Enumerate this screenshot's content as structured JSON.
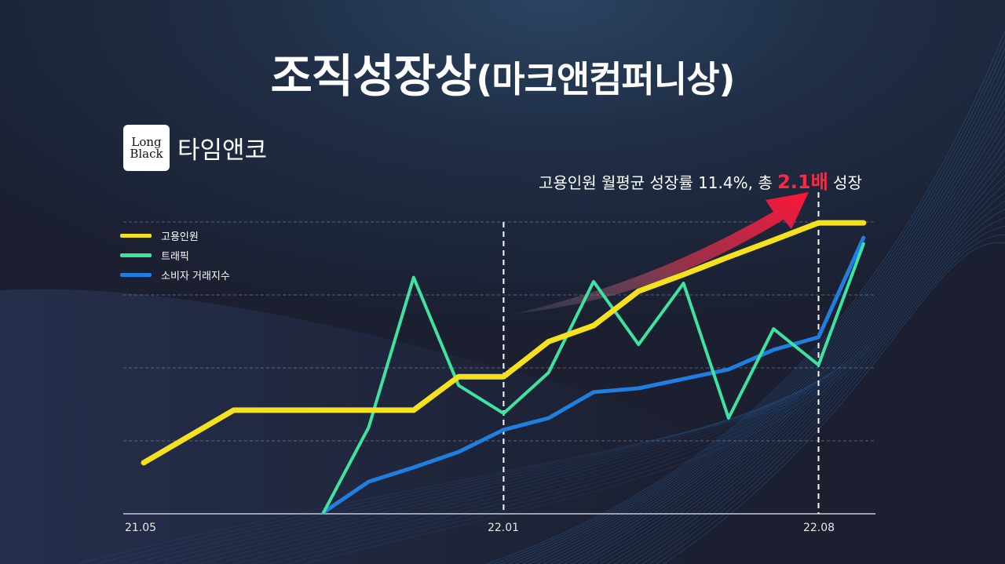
{
  "title": {
    "main": "조직성장상",
    "sub": "(마크앤컴퍼니상)"
  },
  "brand": {
    "logo_line1": "Long",
    "logo_line2": "Black",
    "name": "타임앤코"
  },
  "headline": {
    "prefix": "고용인원 월평균 성장률 11.4%, 총 ",
    "emphasis": "2.1배",
    "suffix": " 성장"
  },
  "legend": [
    {
      "label": "고용인원",
      "color": "#f5e11e"
    },
    {
      "label": "트래픽",
      "color": "#3fe3a0"
    },
    {
      "label": "소비자 거래지수",
      "color": "#1f7fe0"
    }
  ],
  "x_axis_labels": [
    "21.05",
    "22.01",
    "22.08"
  ],
  "colors": {
    "accent_red": "#ff2843",
    "employees": "#f5e11e",
    "traffic": "#3fe3a0",
    "consumer": "#1f7fe0"
  },
  "chart_data": {
    "type": "line",
    "title": "조직성장상(마크앤컴퍼니상)",
    "subtitle": "고용인원 월평균 성장률 11.4%, 총 2.1배 성장",
    "xlabel": "",
    "ylabel": "",
    "x": [
      "21.05",
      "21.06",
      "21.07",
      "21.08",
      "21.09",
      "21.10",
      "21.11",
      "21.12",
      "22.01",
      "22.02",
      "22.03",
      "22.04",
      "22.05",
      "22.06",
      "22.07",
      "22.08",
      "22.09"
    ],
    "x_tick_labels": [
      "21.05",
      "22.01",
      "22.08"
    ],
    "ylim": [
      0,
      100
    ],
    "y_scale_note": "relative index (no y-axis labels shown); 0 = baseline axis, 100 = top gridline",
    "grid": "horizontal dashed, 4 lines; vertical dashed markers at 22.01 and 22.08",
    "legend_position": "top-left",
    "series": [
      {
        "name": "고용인원",
        "color": "#f5e11e",
        "values": [
          17.5,
          26.5,
          35.5,
          35.5,
          35.5,
          35.5,
          35.5,
          47,
          47,
          59,
          64.5,
          76.3,
          82,
          88,
          93.8,
          99.7,
          99.7
        ]
      },
      {
        "name": "트래픽",
        "color": "#3fe3a0",
        "values": [
          null,
          null,
          null,
          null,
          0.5,
          29.6,
          81,
          44,
          34.4,
          48.4,
          79.6,
          58,
          79,
          32.8,
          63.4,
          51,
          92.5
        ]
      },
      {
        "name": "소비자 거래지수",
        "color": "#1f7fe0",
        "values": [
          null,
          null,
          null,
          null,
          0.5,
          11,
          15.9,
          21.2,
          28.8,
          32.8,
          41.7,
          43,
          46.2,
          49.5,
          56.2,
          60.5,
          94.6
        ]
      }
    ],
    "annotations": [
      {
        "text": "2.1배",
        "type": "red curved arrow pointing up-right above 고용인원 line"
      }
    ]
  }
}
